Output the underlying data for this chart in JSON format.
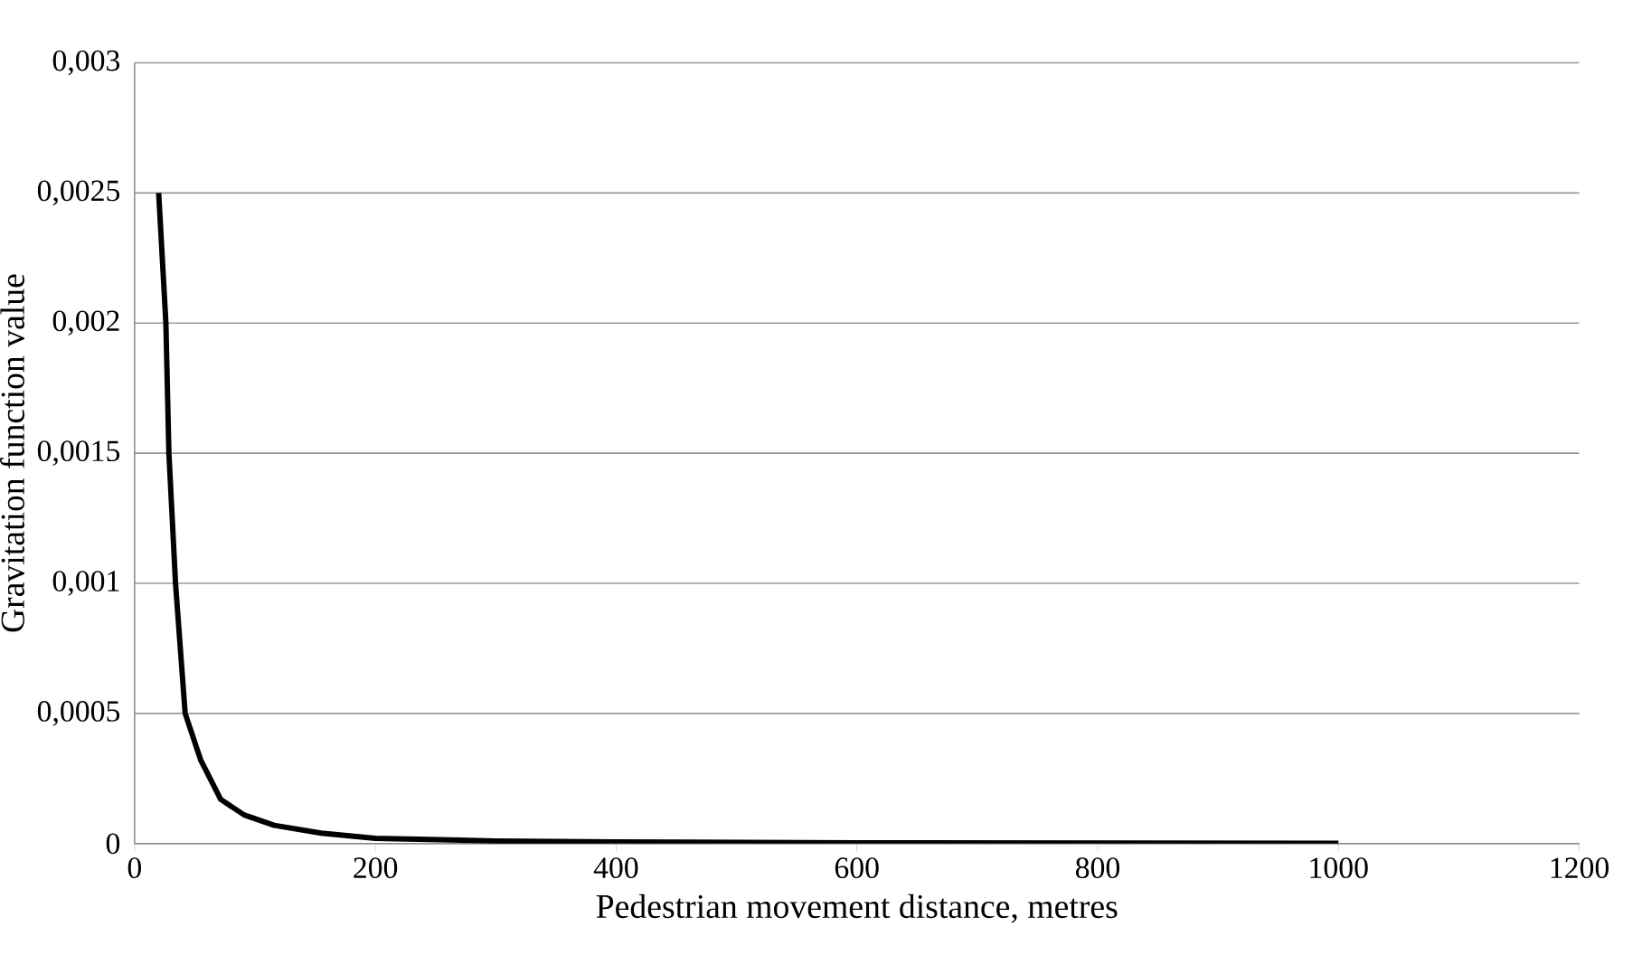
{
  "chart_data": {
    "type": "line",
    "xlabel": "Pedestrian movement distance, metres",
    "ylabel": "Gravitation function value",
    "xlim": [
      0,
      1200
    ],
    "xticks": [
      0,
      200,
      400,
      600,
      800,
      1000,
      1200
    ],
    "ylim": [
      0,
      0.003
    ],
    "yticks": [
      0,
      {
        "value": 0.0005,
        "label": "0,0005"
      },
      {
        "value": 0.001,
        "label": "0,001"
      },
      {
        "value": 0.0015,
        "label": "0,0015"
      },
      {
        "value": 0.002,
        "label": "0,002"
      },
      {
        "value": 0.0025,
        "label": "0,0025"
      },
      {
        "value": 0.003,
        "label": "0,003"
      }
    ],
    "grid": "y",
    "marker": "none",
    "line_style": "solid",
    "series": [
      {
        "color": "#000000",
        "x": [
          20,
          26,
          28.5,
          34,
          42,
          55,
          71.5,
          91,
          116,
          155,
          200,
          300,
          400,
          600,
          800,
          1000
        ],
        "values": [
          0.0025,
          0.002,
          0.0015,
          0.001,
          0.0005,
          0.00032,
          0.00017,
          0.00011,
          7e-05,
          4e-05,
          2e-05,
          1e-05,
          6e-06,
          3e-06,
          2e-06,
          1e-06
        ]
      }
    ]
  }
}
